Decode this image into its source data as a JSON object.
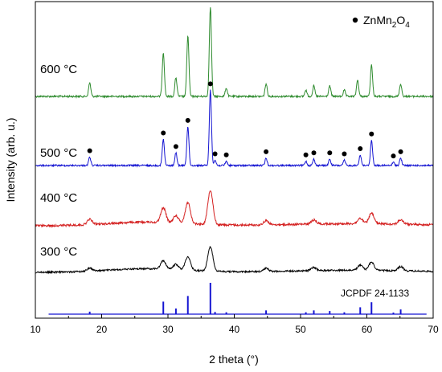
{
  "chart_data": {
    "type": "line",
    "xlabel": "2 theta (°)",
    "ylabel": "Intensity (arb. u.)",
    "xlim": [
      10,
      70
    ],
    "xticks": [
      "10",
      "20",
      "30",
      "40",
      "50",
      "60",
      "70"
    ],
    "grid": false,
    "series": [
      {
        "name": "600 °C",
        "color": "#2e8b2e",
        "peaks": [
          [
            18.2,
            0.13
          ],
          [
            29.3,
            0.42
          ],
          [
            31.2,
            0.18
          ],
          [
            33.0,
            0.58
          ],
          [
            36.4,
            0.86
          ],
          [
            38.8,
            0.08
          ],
          [
            44.8,
            0.12
          ],
          [
            50.8,
            0.06
          ],
          [
            52.0,
            0.1
          ],
          [
            54.4,
            0.1
          ],
          [
            56.6,
            0.06
          ],
          [
            58.6,
            0.16
          ],
          [
            60.7,
            0.3
          ],
          [
            65.1,
            0.12
          ]
        ]
      },
      {
        "name": "500 °C",
        "color": "#1414d2",
        "peaks": [
          [
            18.2,
            0.08
          ],
          [
            29.3,
            0.25
          ],
          [
            31.2,
            0.12
          ],
          [
            33.0,
            0.37
          ],
          [
            36.4,
            0.72
          ],
          [
            37.1,
            0.05
          ],
          [
            38.8,
            0.04
          ],
          [
            44.8,
            0.07
          ],
          [
            50.8,
            0.04
          ],
          [
            52.0,
            0.06
          ],
          [
            54.4,
            0.06
          ],
          [
            56.6,
            0.05
          ],
          [
            59.0,
            0.1
          ],
          [
            60.7,
            0.24
          ],
          [
            64.0,
            0.03
          ],
          [
            65.1,
            0.07
          ]
        ]
      },
      {
        "name": "400 °C",
        "color": "#d42020",
        "peaks": [
          [
            18.2,
            0.05
          ],
          [
            29.3,
            0.14
          ],
          [
            31.2,
            0.07
          ],
          [
            33.0,
            0.2
          ],
          [
            36.4,
            0.33
          ],
          [
            44.8,
            0.04
          ],
          [
            52.0,
            0.04
          ],
          [
            59.0,
            0.05
          ],
          [
            60.7,
            0.1
          ],
          [
            65.1,
            0.04
          ]
        ]
      },
      {
        "name": "300 °C",
        "color": "#000000",
        "peaks": [
          [
            18.2,
            0.03
          ],
          [
            29.3,
            0.08
          ],
          [
            31.2,
            0.05
          ],
          [
            33.0,
            0.13
          ],
          [
            36.4,
            0.23
          ],
          [
            44.8,
            0.03
          ],
          [
            52.0,
            0.03
          ],
          [
            59.0,
            0.05
          ],
          [
            60.7,
            0.08
          ],
          [
            65.1,
            0.04
          ]
        ]
      }
    ],
    "markers": {
      "series": "500 °C",
      "x": [
        18.2,
        29.3,
        31.2,
        33.0,
        36.4,
        37.1,
        38.8,
        44.8,
        50.8,
        52.0,
        54.4,
        56.6,
        59.0,
        60.7,
        64.0,
        65.1
      ]
    },
    "reference": {
      "label": "JCPDF 24-1133",
      "color": "#1414d2",
      "lines": [
        [
          18.2,
          0.08
        ],
        [
          29.3,
          0.4
        ],
        [
          31.2,
          0.18
        ],
        [
          33.0,
          0.58
        ],
        [
          36.4,
          1.0
        ],
        [
          37.1,
          0.07
        ],
        [
          38.8,
          0.06
        ],
        [
          44.8,
          0.12
        ],
        [
          50.8,
          0.06
        ],
        [
          52.0,
          0.12
        ],
        [
          54.4,
          0.1
        ],
        [
          56.6,
          0.06
        ],
        [
          59.0,
          0.22
        ],
        [
          60.7,
          0.38
        ],
        [
          64.0,
          0.05
        ],
        [
          65.1,
          0.15
        ]
      ]
    },
    "legend": {
      "label": "ZnMn",
      "sub1": "2",
      "mid": "O",
      "sub2": "4",
      "position": "top-right"
    }
  }
}
